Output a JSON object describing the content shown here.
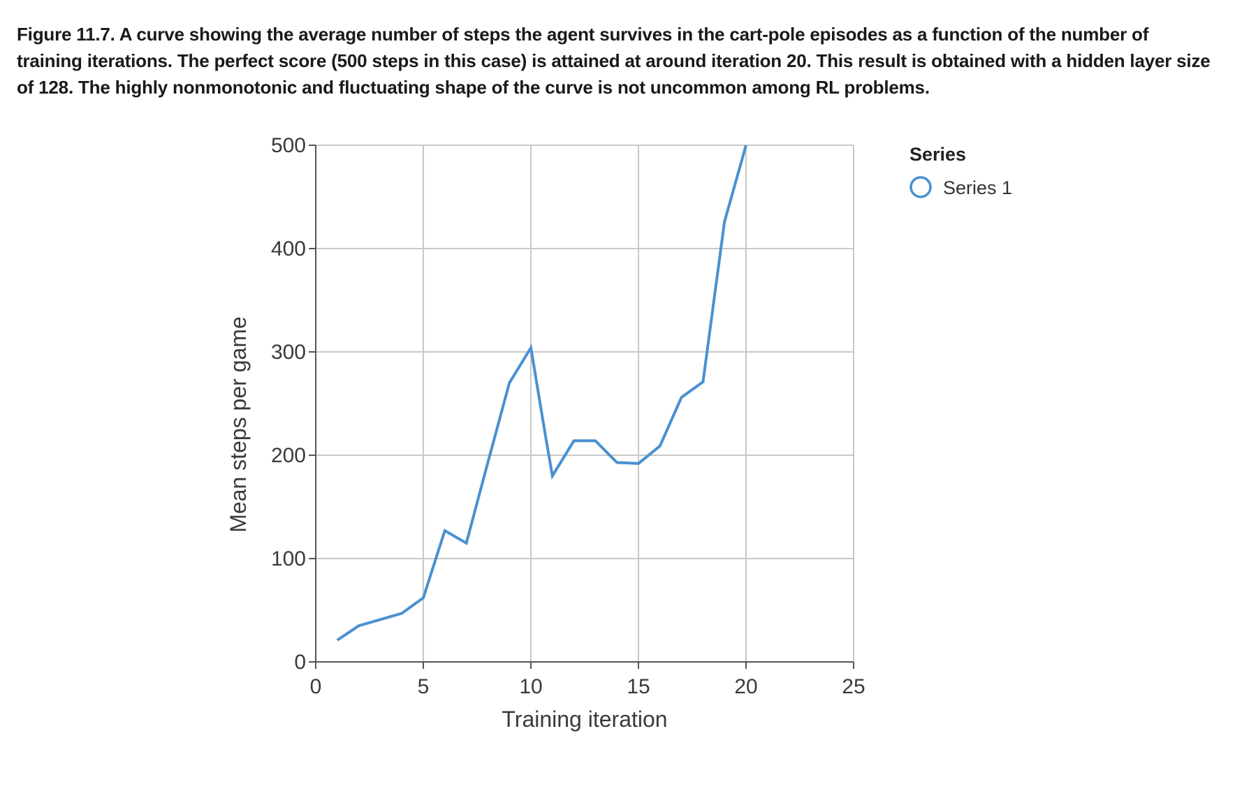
{
  "caption": "Figure 11.7. A curve showing the average number of steps the agent survives in the cart-pole episodes as a function of the number of training iterations. The perfect score (500 steps in this case) is attained at around iteration 20. This result is obtained with a hidden layer size of 128. The highly nonmonotonic and fluctuating shape of the curve is not uncommon among RL problems.",
  "colors": {
    "series": "#4a90d0",
    "grid": "#c8c8c8",
    "axis": "#555555"
  },
  "chart_data": {
    "type": "line",
    "title": "",
    "xlabel": "Training iteration",
    "ylabel": "Mean steps per game",
    "xlim": [
      0,
      25
    ],
    "ylim": [
      0,
      500
    ],
    "xticks": [
      0,
      5,
      10,
      15,
      20,
      25
    ],
    "yticks": [
      0,
      100,
      200,
      300,
      400,
      500
    ],
    "grid": true,
    "legend": {
      "title": "Series",
      "placement": "top-right",
      "entries": [
        "Series 1"
      ]
    },
    "series": [
      {
        "name": "Series 1",
        "x": [
          1,
          2,
          3,
          4,
          5,
          6,
          7,
          8,
          9,
          10,
          10.7,
          11,
          12,
          13,
          14,
          15,
          16,
          17,
          18,
          19,
          20
        ],
        "y": [
          21,
          35,
          41,
          47,
          62,
          127,
          115,
          193,
          270,
          304,
          216,
          180,
          214,
          214,
          193,
          192,
          209,
          256,
          271,
          426,
          500
        ]
      }
    ]
  }
}
